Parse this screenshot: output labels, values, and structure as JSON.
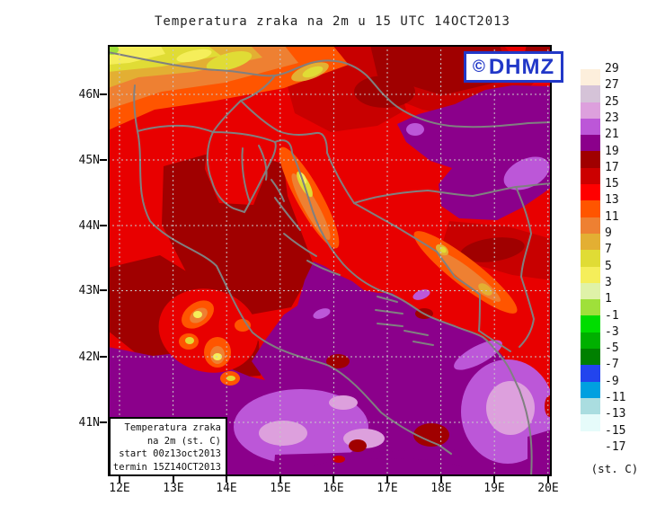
{
  "title": "Temperatura zraka na 2m u 15 UTC 14OCT2013",
  "logo": {
    "copyright": "©",
    "text": "DHMZ",
    "color": "#2238c8"
  },
  "map": {
    "lat_labels": [
      "46N",
      "45N",
      "44N",
      "43N",
      "42N",
      "41N"
    ],
    "lon_labels": [
      "12E",
      "13E",
      "14E",
      "15E",
      "16E",
      "17E",
      "18E",
      "19E",
      "20E"
    ]
  },
  "inset": {
    "lines": [
      "Temperatura zraka",
      "na 2m (st. C)",
      "start 00z13oct2013",
      "termin 15Z14OCT2013"
    ]
  },
  "colorbar": {
    "unit_label": "(st. C)",
    "tick_labels": [
      "29",
      "27",
      "25",
      "23",
      "21",
      "19",
      "17",
      "15",
      "13",
      "11",
      "9",
      "7",
      "5",
      "3",
      "1",
      "-1",
      "-3",
      "-5",
      "-7",
      "-9",
      "-11",
      "-13",
      "-15",
      "-17"
    ],
    "colors": [
      "#FDEFDC",
      "#D5C3D8",
      "#DDA0DD",
      "#BC57D8",
      "#8B008B",
      "#A00000",
      "#CC0000",
      "#FF0000",
      "#FF5500",
      "#EE8032",
      "#E3AF33",
      "#E0DC35",
      "#F5EE5A",
      "#DFF2A8",
      "#9FE03A",
      "#00DD00",
      "#00B000",
      "#008000",
      "#2244EE",
      "#00A0E0",
      "#AADDE0",
      "#E6FBFA",
      "#FFFFFF"
    ]
  }
}
